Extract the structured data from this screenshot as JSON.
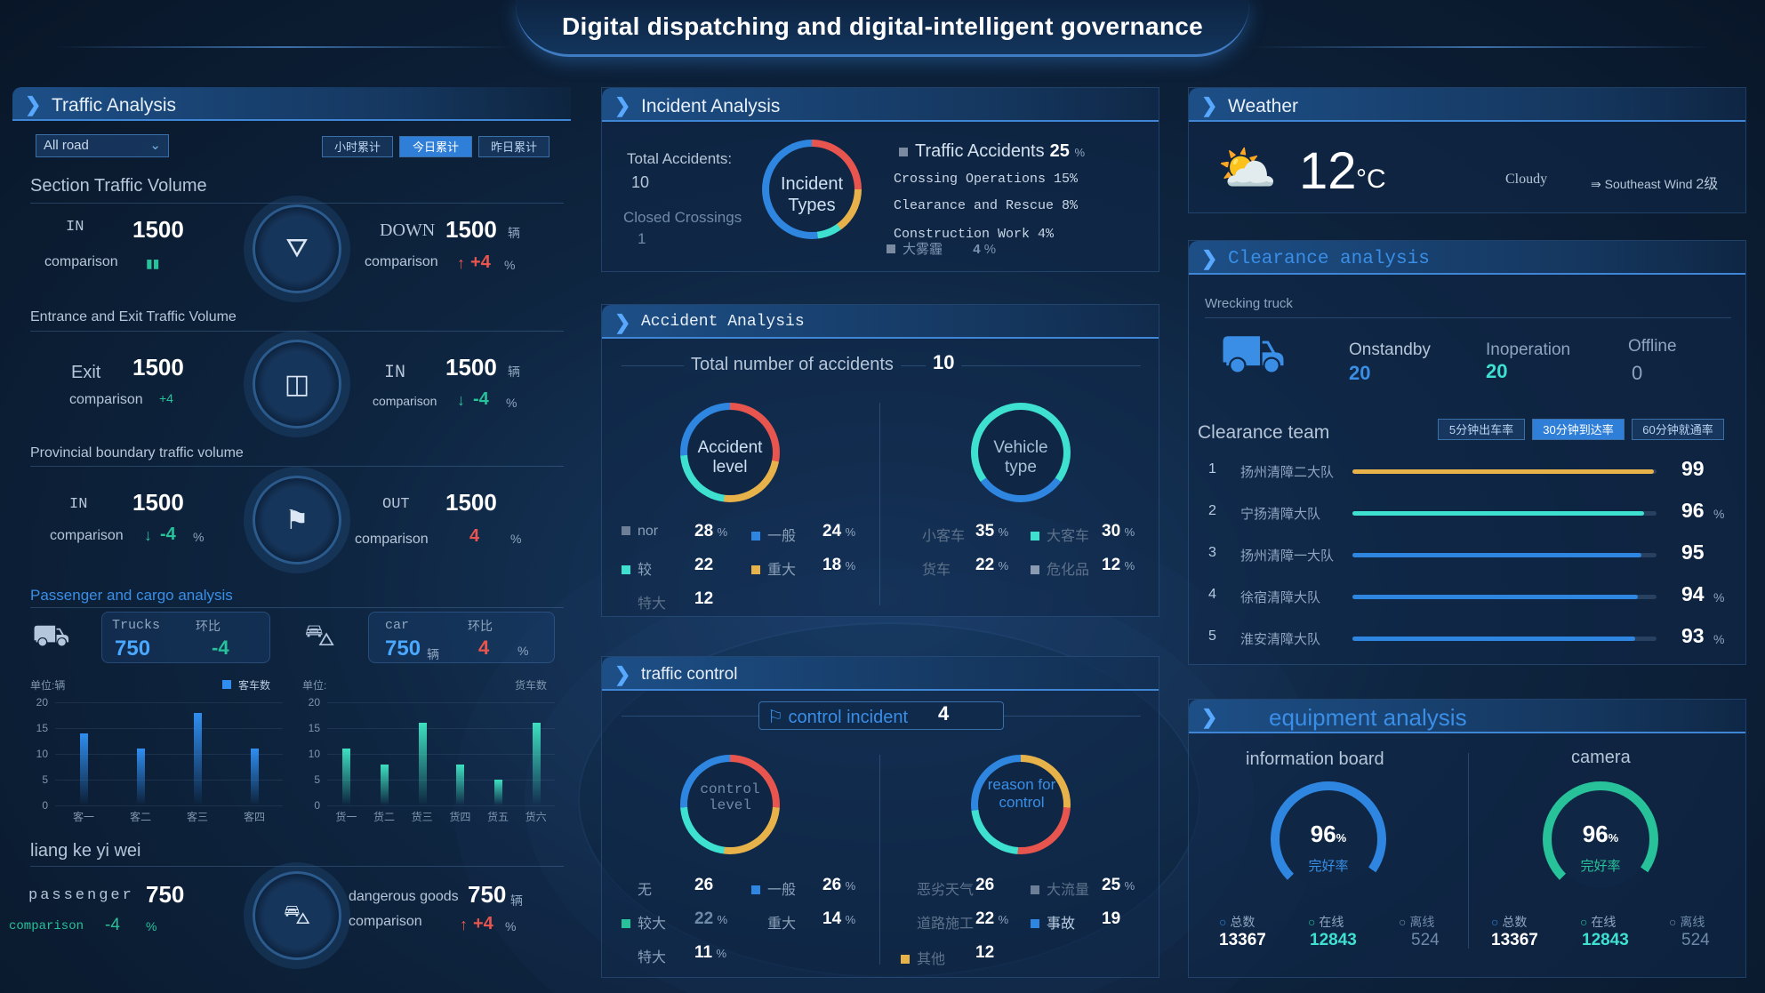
{
  "header": {
    "title": "Digital dispatching and digital-intelligent governance"
  },
  "traffic": {
    "title": "Traffic Analysis",
    "road_select": "All road",
    "buttons": [
      "小时累计",
      "今日累计",
      "昨日累计"
    ],
    "section_title": "Section Traffic Volume",
    "in_label": "IN",
    "in_value": "1500",
    "comparison": "comparison",
    "down_label": "DOWN",
    "down_value": "1500",
    "down_unit": "辆",
    "down_change": "+4",
    "pct": "%",
    "entrance_title": "Entrance and Exit Traffic Volume",
    "exit_label": "Exit",
    "exit_value": "1500",
    "exit_change": "+4",
    "in2_label": "IN",
    "in2_value": "1500",
    "in2_unit": "辆",
    "in2_change": "-4",
    "provincial_title": "Provincial boundary traffic volume",
    "in3_label": "IN",
    "in3_value": "1500",
    "in3_change": "-4",
    "out_label": "OUT",
    "out_value": "1500",
    "out_change": "4"
  },
  "cargo": {
    "title": "Passenger and cargo analysis",
    "trucks_label": "Trucks",
    "trucks_value": "750",
    "ring_label": "环比",
    "trucks_change": "-4",
    "car_label": "car",
    "car_value": "750",
    "car_unit": "辆",
    "car_change": "4",
    "left_chart": {
      "unit": "单位:辆",
      "legend": "客车数",
      "categories": [
        "客一",
        "客二",
        "客三",
        "客四"
      ],
      "values": [
        14,
        11,
        18,
        11
      ]
    },
    "right_chart": {
      "unit": "单位:",
      "legend": "货车数",
      "categories": [
        "货一",
        "货二",
        "货三",
        "货四",
        "货五",
        "货六"
      ],
      "values": [
        11,
        8,
        16,
        8,
        5,
        16
      ]
    },
    "yticks": [
      "20",
      "15",
      "10",
      "5",
      "0"
    ]
  },
  "liang": {
    "title": "liang ke yi wei",
    "passenger_label": "passenger",
    "passenger_value": "750",
    "passenger_change": "-4",
    "dangerous_label": "dangerous goods",
    "dangerous_value": "750",
    "dangerous_unit": "辆",
    "dangerous_change": "+4",
    "comparison": "comparison",
    "pct": "%"
  },
  "incident": {
    "title": "Incident Analysis",
    "total_label": "Total Accidents:",
    "total_value": "10",
    "closed_label": "Closed Crossings",
    "closed_value": "1",
    "ring_label": "Incident Types",
    "types": [
      {
        "name": "Traffic Accidents",
        "value": "25",
        "unit": "%"
      },
      {
        "name": "Crossing Operations 15%"
      },
      {
        "name": "Clearance and Rescue 8%"
      },
      {
        "name": "Construction Work 4%"
      },
      {
        "name": "大雾霾",
        "value": "4",
        "unit": "%"
      }
    ]
  },
  "accident": {
    "title": "Accident Analysis",
    "total_label": "Total number of accidents",
    "total_value": "10",
    "level_ring": "Accident level",
    "vehicle_ring": "Vehicle type",
    "level": [
      {
        "name": "nor",
        "value": "28",
        "unit": "%"
      },
      {
        "name": "一般",
        "value": "24",
        "unit": "%"
      },
      {
        "name": "较",
        "value": "22"
      },
      {
        "name": "重大",
        "value": "18",
        "unit": "%"
      },
      {
        "name": "特大",
        "value": "12"
      }
    ],
    "vehicle": [
      {
        "name": "小客车",
        "value": "35",
        "unit": "%"
      },
      {
        "name": "大客车",
        "value": "30",
        "unit": "%"
      },
      {
        "name": "货车",
        "value": "22",
        "unit": "%"
      },
      {
        "name": "危化品",
        "value": "12",
        "unit": "%"
      }
    ]
  },
  "control": {
    "title": "traffic control",
    "incident_label": "control incident",
    "incident_value": "4",
    "level_ring": "control level",
    "reason_ring": "reason for control",
    "level": [
      {
        "name": "无",
        "value": "26"
      },
      {
        "name": "一般",
        "value": "26",
        "unit": "%"
      },
      {
        "name": "较大",
        "value": "22",
        "unit": "%"
      },
      {
        "name": "重大",
        "value": "14",
        "unit": "%"
      },
      {
        "name": "特大",
        "value": "11",
        "unit": "%"
      }
    ],
    "reason": [
      {
        "name": "恶劣天气",
        "value": "26"
      },
      {
        "name": "大流量",
        "value": "25",
        "unit": "%"
      },
      {
        "name": "道路施工",
        "value": "22",
        "unit": "%"
      },
      {
        "name": "事故",
        "value": "19"
      },
      {
        "name": "其他",
        "value": "12"
      }
    ]
  },
  "weather": {
    "title": "Weather",
    "temp": "12",
    "unit": "°C",
    "cond": "Cloudy",
    "wind": "Southeast Wind",
    "wind_level": "2级"
  },
  "clearance": {
    "title": "Clearance analysis",
    "truck_label": "Wrecking truck",
    "standby_label": "Onstandby",
    "standby_value": "20",
    "operation_label": "Inoperation",
    "operation_value": "20",
    "offline_label": "Offline",
    "offline_value": "0",
    "team_title": "Clearance team",
    "team_buttons": [
      "5分钟出车率",
      "30分钟到达率",
      "60分钟就通率"
    ],
    "teams": [
      {
        "rank": "1",
        "name": "扬州清障二大队",
        "score": "99",
        "fill": 0.99,
        "color": "#e8b24a"
      },
      {
        "rank": "2",
        "name": "宁扬清障大队",
        "score": "96",
        "fill": 0.96,
        "color": "#3ee0d0"
      },
      {
        "rank": "3",
        "name": "扬州清障一大队",
        "score": "95",
        "fill": 0.95,
        "color": "#2f86e0"
      },
      {
        "rank": "4",
        "name": "徐宿清障大队",
        "score": "94",
        "fill": 0.94,
        "color": "#2f86e0"
      },
      {
        "rank": "5",
        "name": "淮安清障大队",
        "score": "93",
        "fill": 0.93,
        "color": "#2f86e0"
      }
    ],
    "pct": "%"
  },
  "equipment": {
    "title": "equipment analysis",
    "board_label": "information board",
    "board_pct": "96",
    "board_sub": "完好率",
    "camera_label": "camera",
    "camera_pct": "96",
    "camera_sub": "完好率",
    "stats": [
      {
        "name": "总数",
        "value": "13367"
      },
      {
        "name": "在线",
        "value": "12843"
      },
      {
        "name": "离线",
        "value": "524"
      }
    ]
  }
}
